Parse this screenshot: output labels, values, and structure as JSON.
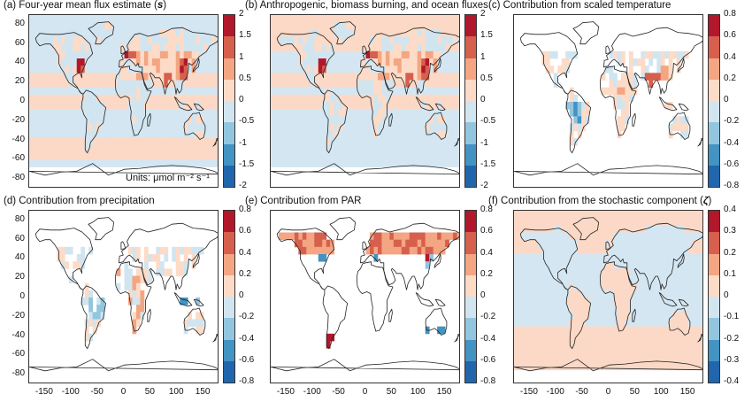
{
  "chart_data": [
    {
      "type": "heatmap",
      "title": "(a) Four-year mean flux estimate (",
      "title_symbol": "s",
      "title_end": ")",
      "colorbar_ticks": [
        "2",
        "1.5",
        "1",
        "0.5",
        "0",
        "-0.5",
        "-1",
        "-1.5",
        "-2"
      ],
      "units": "Units: μmol m⁻² s⁻¹",
      "pattern": "a"
    },
    {
      "type": "heatmap",
      "title": "(b) Anthropogenic, biomass burning, and ocean fluxes",
      "colorbar_ticks": [
        "2",
        "1.5",
        "1",
        "0.5",
        "0",
        "-0.5",
        "-1",
        "-1.5",
        "-2"
      ],
      "pattern": "b"
    },
    {
      "type": "heatmap",
      "title": "(c) Contribution from scaled temperature",
      "colorbar_ticks": [
        "0.8",
        "0.6",
        "0.4",
        "0.2",
        "0",
        "-0.2",
        "-0.4",
        "-0.6",
        "-0.8"
      ],
      "pattern": "c"
    },
    {
      "type": "heatmap",
      "title": "(d) Contribution from precipitation",
      "colorbar_ticks": [
        "0.8",
        "0.6",
        "0.4",
        "0.2",
        "0",
        "-0.2",
        "-0.4",
        "-0.6",
        "-0.8"
      ],
      "pattern": "d"
    },
    {
      "type": "heatmap",
      "title": "(e) Contribution from PAR",
      "colorbar_ticks": [
        "0.8",
        "0.6",
        "0.4",
        "0.2",
        "0",
        "-0.2",
        "-0.4",
        "-0.6",
        "-0.8"
      ],
      "pattern": "e"
    },
    {
      "type": "heatmap",
      "title": "(f) Contribution from the stochastic component (",
      "title_symbol": "ζ",
      "title_end": ")",
      "colorbar_ticks": [
        "0.4",
        "0.3",
        "0.2",
        "0.1",
        "0",
        "-0.1",
        "-0.2",
        "-0.3",
        "-0.4"
      ],
      "pattern": "f"
    }
  ],
  "axes": {
    "y_ticks": [
      "80",
      "60",
      "40",
      "20",
      "0",
      "-20",
      "-40",
      "-60",
      "-80"
    ],
    "x_ticks": [
      "-150",
      "-100",
      "-50",
      "0",
      "50",
      "100",
      "150"
    ],
    "xlim": [
      -180,
      180
    ],
    "ylim": [
      -90,
      90
    ]
  },
  "colors": {
    "palette": [
      "#b2182b",
      "#d6604d",
      "#f4a582",
      "#fddbc7",
      "#ffffff",
      "#d1e5f0",
      "#92c5de",
      "#4393c3",
      "#2166ac"
    ],
    "ocean_positive": "#fbd9c6",
    "ocean_negative": "#d4e6f1"
  }
}
